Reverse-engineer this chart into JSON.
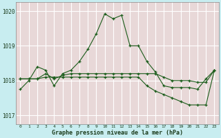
{
  "xlabel": "Graphe pression niveau de la mer (hPa)",
  "bg_color": "#c8edf0",
  "grid_bg_color": "#e8d8d8",
  "line_color": "#1a5c1a",
  "x_values": [
    0,
    1,
    2,
    3,
    4,
    5,
    6,
    7,
    8,
    9,
    10,
    11,
    12,
    13,
    14,
    15,
    16,
    17,
    18,
    19,
    20,
    21,
    22,
    23
  ],
  "series1": [
    1017.75,
    1018.0,
    1018.4,
    1018.3,
    1017.85,
    1018.2,
    1018.3,
    1018.55,
    1018.9,
    1019.35,
    1019.92,
    1019.78,
    1019.88,
    1019.0,
    1019.0,
    1018.55,
    1018.25,
    1017.85,
    1017.8,
    1017.8,
    1017.8,
    1017.75,
    1018.05,
    1018.3
  ],
  "series2": [
    1018.05,
    1018.05,
    1018.05,
    1018.2,
    1018.05,
    1018.15,
    1018.2,
    1018.2,
    1018.2,
    1018.2,
    1018.2,
    1018.2,
    1018.2,
    1018.2,
    1018.2,
    1018.2,
    1018.2,
    1018.1,
    1018.0,
    1018.0,
    1018.0,
    1017.95,
    1017.95,
    1018.3
  ],
  "series3": [
    1018.05,
    1018.05,
    1018.05,
    1018.1,
    1018.1,
    1018.1,
    1018.1,
    1018.1,
    1018.1,
    1018.1,
    1018.1,
    1018.1,
    1018.1,
    1018.1,
    1018.1,
    1017.85,
    1017.7,
    1017.6,
    1017.5,
    1017.4,
    1017.3,
    1017.3,
    1017.3,
    1018.3
  ],
  "ylim": [
    1016.75,
    1020.25
  ],
  "yticks": [
    1017,
    1018,
    1019,
    1020
  ],
  "xticks": [
    0,
    1,
    2,
    3,
    4,
    5,
    6,
    7,
    8,
    9,
    10,
    11,
    12,
    13,
    14,
    15,
    16,
    17,
    18,
    19,
    20,
    21,
    22,
    23
  ]
}
